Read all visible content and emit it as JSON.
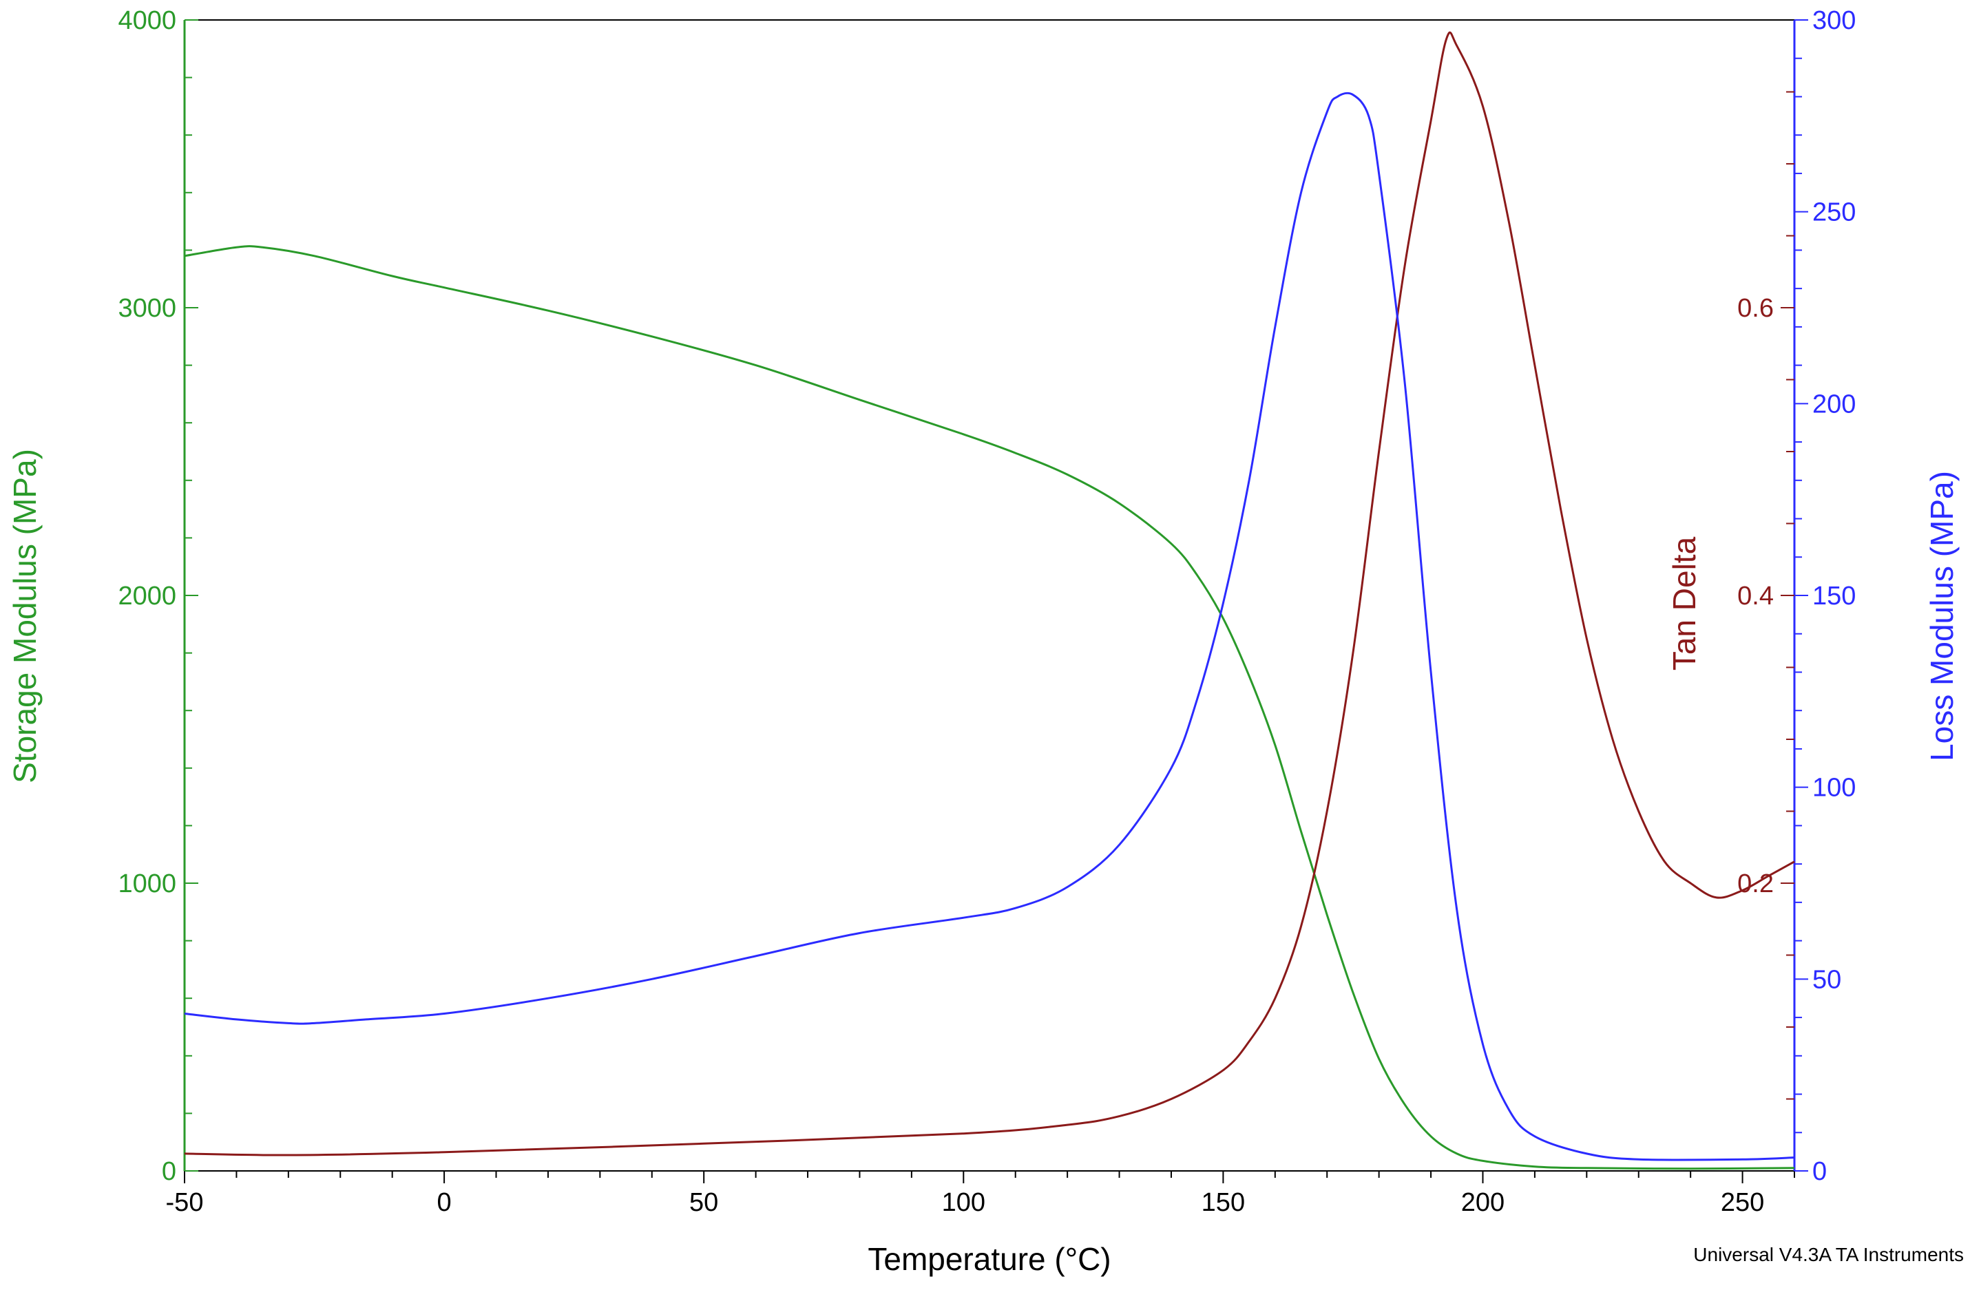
{
  "colors": {
    "storage": "#2a9a2a",
    "loss": "#2b2bff",
    "tan": "#8b1a1a",
    "axis": "#000000"
  },
  "footer": "Universal V4.3A TA Instruments",
  "chart_data": {
    "type": "line",
    "title": "",
    "xlabel": "Temperature (°C)",
    "xlim": [
      -50,
      260
    ],
    "xticks": [
      -50,
      0,
      50,
      100,
      150,
      200,
      250
    ],
    "y_axes": {
      "storage": {
        "label": "Storage Modulus (MPa)",
        "lim": [
          0,
          4000
        ],
        "ticks": [
          0,
          1000,
          2000,
          3000,
          4000
        ],
        "side": "left"
      },
      "loss": {
        "label": "Loss Modulus (MPa)",
        "lim": [
          0,
          300
        ],
        "ticks": [
          0,
          50,
          100,
          150,
          200,
          250,
          300
        ],
        "side": "right"
      },
      "tan": {
        "label": "Tan Delta",
        "lim": [
          0,
          0.8
        ],
        "ticks": [
          0.2,
          0.4,
          0.6
        ],
        "side": "right-inner"
      }
    },
    "grid": false,
    "series": [
      {
        "name": "Storage Modulus (MPa)",
        "axis": "storage",
        "x": [
          -50,
          -40,
          -35,
          -25,
          -10,
          0,
          20,
          40,
          60,
          80,
          100,
          110,
          120,
          130,
          140,
          145,
          150,
          155,
          160,
          165,
          170,
          175,
          180,
          185,
          190,
          195,
          200,
          210,
          220,
          240,
          260
        ],
        "y": [
          3180,
          3210,
          3210,
          3180,
          3110,
          3070,
          2990,
          2900,
          2800,
          2680,
          2560,
          2495,
          2420,
          2320,
          2180,
          2070,
          1920,
          1720,
          1480,
          1180,
          890,
          620,
          390,
          230,
          120,
          60,
          35,
          15,
          10,
          8,
          10
        ]
      },
      {
        "name": "Loss Modulus (MPa)",
        "axis": "loss",
        "x": [
          -50,
          -40,
          -30,
          -25,
          -15,
          0,
          20,
          40,
          60,
          80,
          100,
          110,
          120,
          130,
          140,
          145,
          150,
          155,
          160,
          165,
          170,
          172,
          175,
          178,
          180,
          185,
          190,
          195,
          200,
          205,
          210,
          220,
          230,
          250,
          260
        ],
        "y": [
          41,
          39.5,
          38.5,
          38.5,
          39.5,
          41,
          45,
          50,
          56,
          62,
          66,
          68.5,
          74,
          85,
          105,
          123,
          148,
          180,
          220,
          255,
          276,
          280,
          280.5,
          275,
          260,
          205,
          130,
          68,
          33,
          16,
          9,
          4.5,
          3,
          3,
          3.5
        ]
      },
      {
        "name": "Tan Delta",
        "axis": "tan",
        "x": [
          -50,
          -30,
          0,
          50,
          100,
          120,
          130,
          140,
          150,
          155,
          160,
          165,
          170,
          175,
          180,
          185,
          190,
          193,
          195,
          200,
          205,
          210,
          215,
          220,
          225,
          230,
          235,
          240,
          245,
          250,
          255,
          260
        ],
        "y": [
          0.012,
          0.011,
          0.013,
          0.019,
          0.026,
          0.032,
          0.038,
          0.05,
          0.07,
          0.09,
          0.12,
          0.17,
          0.25,
          0.36,
          0.5,
          0.63,
          0.73,
          0.787,
          0.782,
          0.74,
          0.66,
          0.56,
          0.46,
          0.37,
          0.3,
          0.25,
          0.215,
          0.2,
          0.19,
          0.195,
          0.205,
          0.215
        ]
      }
    ]
  }
}
